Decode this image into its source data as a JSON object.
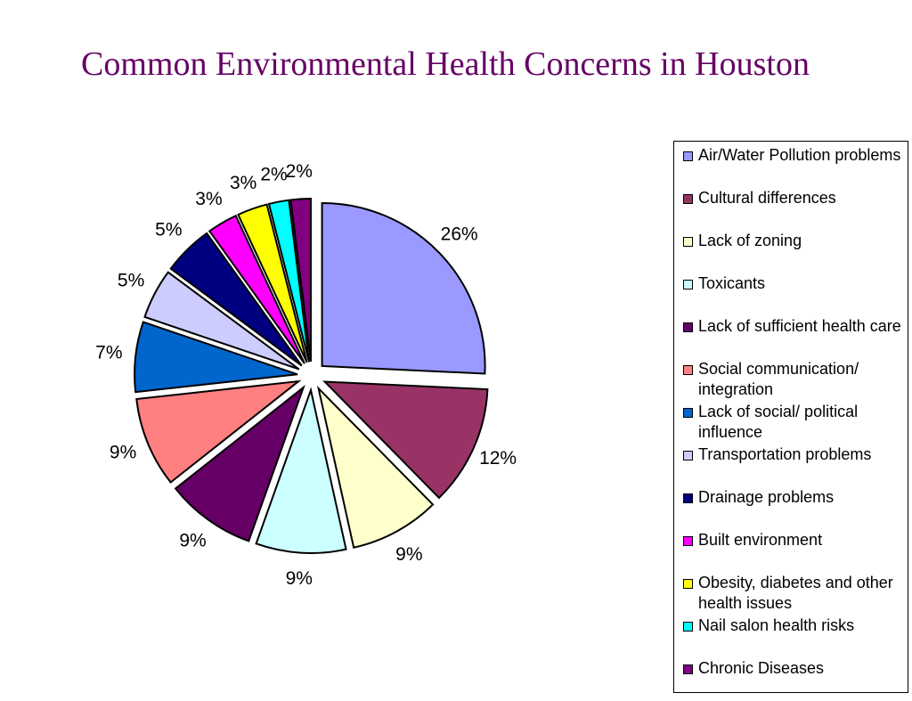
{
  "chart_data": {
    "type": "pie",
    "title": "Common Environmental Health Concerns in Houston",
    "categories": [
      "Air/Water Pollution problems",
      "Cultural differences",
      "Lack of zoning",
      "Toxicants",
      "Lack of sufficient health care",
      "Social communication/ integration",
      "Lack of social/ political influence",
      "Transportation problems",
      "Drainage problems",
      "Built environment",
      "Obesity, diabetes and other health issues",
      "Nail salon health risks",
      "Chronic Diseases"
    ],
    "values": [
      26,
      12,
      9,
      9,
      9,
      9,
      7,
      5,
      5,
      3,
      3,
      2,
      2
    ],
    "value_labels": [
      "26%",
      "12%",
      "9%",
      "9%",
      "9%",
      "9%",
      "7%",
      "5%",
      "5%",
      "3%",
      "3%",
      "2%",
      "2%"
    ],
    "colors": [
      "#9999ff",
      "#993366",
      "#ffffcc",
      "#ccffff",
      "#660066",
      "#ff8080",
      "#0066cc",
      "#ccccff",
      "#000080",
      "#ff00ff",
      "#ffff00",
      "#00ffff",
      "#800080"
    ],
    "legend": "right"
  }
}
